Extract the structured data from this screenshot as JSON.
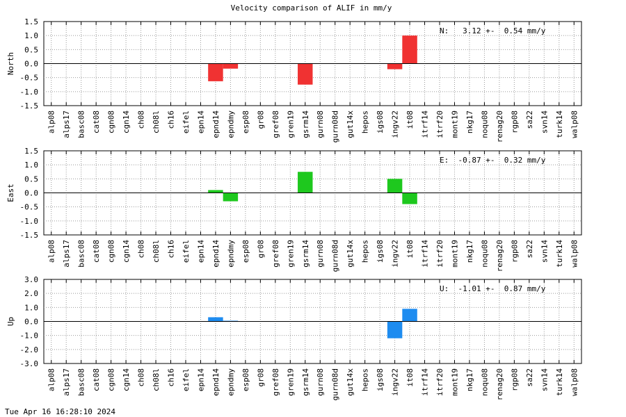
{
  "title": "Velocity comparison of ALIF in mm/y",
  "timestamp": "Tue Apr 16 16:28:10 2024",
  "chart_data": {
    "type": "bar",
    "categories": [
      "alp08",
      "alps17",
      "basc08",
      "cat08",
      "cgn08",
      "cgn14",
      "ch08",
      "ch08l",
      "ch16",
      "eifel",
      "epn14",
      "epnd14",
      "epndmy",
      "esp08",
      "gr08",
      "gref08",
      "gren19",
      "gsrm14",
      "gurn08",
      "gurn08d",
      "gut14x",
      "hepos",
      "igs08",
      "ingv22",
      "it08",
      "itrf14",
      "itrf20",
      "mont19",
      "nkg17",
      "noqu08",
      "renag20",
      "rgp08",
      "sa22",
      "svn14",
      "turk14",
      "walp08"
    ],
    "panels": [
      {
        "ylabel": "North",
        "ylim": [
          -1.5,
          1.5
        ],
        "yticks": [
          "1.5",
          "1.0",
          "0.5",
          "0.0",
          "-0.5",
          "-1.0",
          "-1.5"
        ],
        "annotation": "N:   3.12 +-  0.54 mm/y",
        "color": "#f03232",
        "values": [
          0,
          0,
          0,
          0,
          0,
          0,
          0,
          0,
          0,
          0,
          0,
          -0.63,
          -0.18,
          0,
          0,
          0,
          0,
          -0.75,
          0,
          0,
          0,
          0,
          0,
          -0.2,
          1.0,
          0,
          0,
          0,
          0,
          0,
          0,
          0,
          0,
          0,
          0,
          0
        ]
      },
      {
        "ylabel": "East",
        "ylim": [
          -1.5,
          1.5
        ],
        "yticks": [
          "1.5",
          "1.0",
          "0.5",
          "0.0",
          "-0.5",
          "-1.0",
          "-1.5"
        ],
        "annotation": "E:  -0.87 +-  0.32 mm/y",
        "color": "#1ec81e",
        "values": [
          0,
          0,
          0,
          0,
          0,
          0,
          0,
          0,
          0,
          0,
          0,
          0.1,
          -0.3,
          0,
          0,
          0,
          0,
          0.75,
          0,
          0,
          0,
          0,
          0,
          0.5,
          -0.4,
          0,
          0,
          0,
          0,
          0,
          0,
          0,
          0,
          0,
          0,
          0
        ]
      },
      {
        "ylabel": "Up",
        "ylim": [
          -3.0,
          3.0
        ],
        "yticks": [
          "3.0",
          "2.0",
          "1.0",
          "0.0",
          "-1.0",
          "-2.0",
          "-3.0"
        ],
        "annotation": "U:  -1.01 +-  0.87 mm/y",
        "color": "#1e8cf0",
        "values": [
          0,
          0,
          0,
          0,
          0,
          0,
          0,
          0,
          0,
          0,
          0,
          0.3,
          0.05,
          0,
          0,
          0,
          0,
          0,
          0,
          0,
          0,
          0,
          0,
          -1.2,
          0.9,
          0,
          0,
          0,
          0,
          0,
          0,
          0,
          0,
          0,
          0,
          0
        ]
      }
    ],
    "grid": true
  }
}
